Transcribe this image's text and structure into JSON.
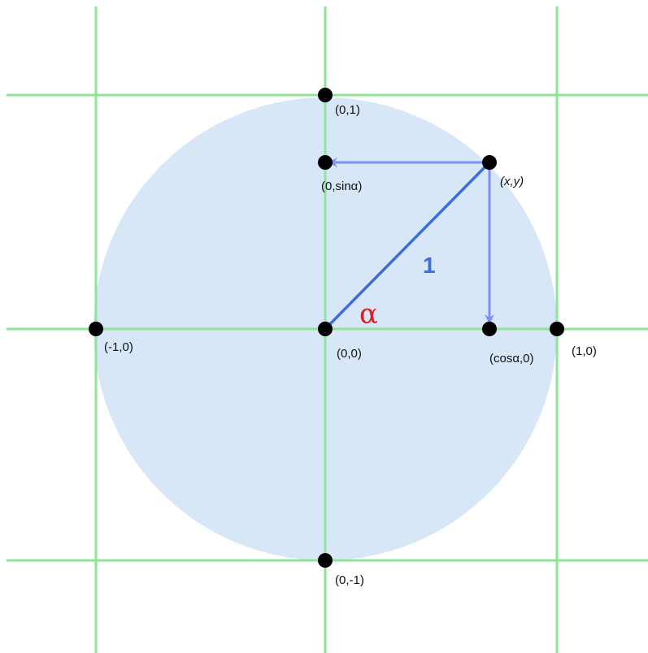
{
  "nodes": [
    {
      "label": "(0,1)"
    },
    {
      "label": "(0,sinα)"
    },
    {
      "label": "(x,y)"
    },
    {
      "label": "(-1,0)"
    },
    {
      "label": "(0,0)"
    },
    {
      "label": "(cosα,0)"
    },
    {
      "label": "(1,0)"
    },
    {
      "label": "(0,-1)"
    }
  ],
  "radius_label": "1",
  "angle_label": "α"
}
